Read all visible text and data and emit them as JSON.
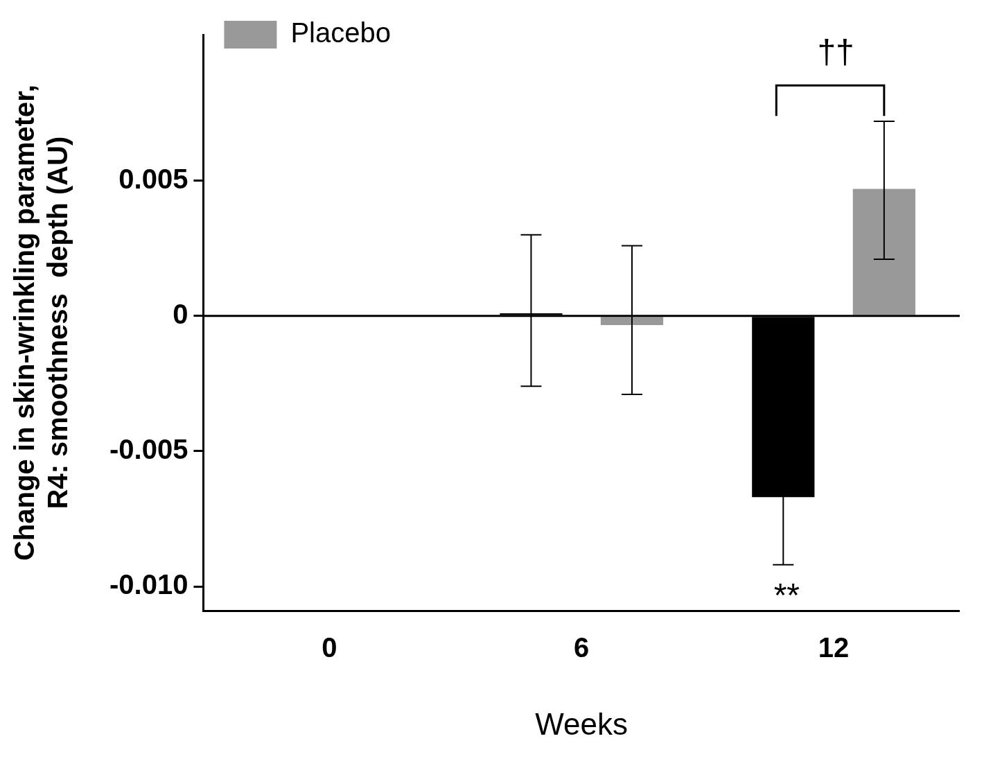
{
  "chart_data": {
    "type": "bar",
    "xlabel": "Weeks",
    "ylabel": "Change in skin-wrinkling parameter,\nR4: smoothness  depth (AU)",
    "categories": [
      "0",
      "6",
      "12"
    ],
    "series": [
      {
        "color": "#000000",
        "values": [
          null,
          0.0001,
          -0.0067
        ],
        "errors": [
          null,
          [
            -0.0026,
            0.003
          ],
          0.0025
        ]
      },
      {
        "name": "Placebo",
        "color": "#999999",
        "values": [
          null,
          -0.00034,
          0.0047
        ],
        "errors": [
          null,
          [
            -0.0029,
            0.0026
          ],
          [
            0.0021,
            0.0072
          ]
        ]
      }
    ],
    "ylim": [
      -0.0109,
      0.0104
    ],
    "yticks": [
      {
        "value": -0.01,
        "label": "-0.010"
      },
      -0.005,
      0,
      0.005
    ],
    "grid": false,
    "legend": "top left",
    "ref_lines": [
      {
        "axis": "y",
        "value": 0,
        "color": "#000000"
      }
    ],
    "annotations": [
      "**",
      "††"
    ]
  }
}
